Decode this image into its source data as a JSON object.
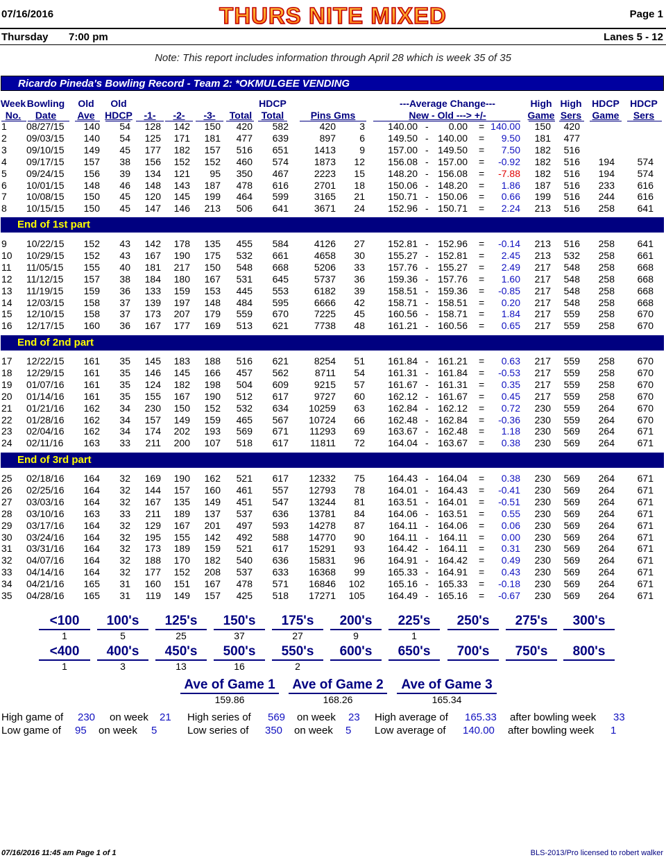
{
  "header": {
    "date": "07/16/2016",
    "league_name": "THURS NITE MIXED",
    "page": "Page 1",
    "day": "Thursday",
    "time": "7:00 pm",
    "lanes": "Lanes 5 - 12",
    "note": "Note: This report includes information through April 28   which is week 35 of 35"
  },
  "record_title": "Ricardo Pineda's Bowling Record  - Team 2: *OKMULGEE VENDING",
  "columns": {
    "week": [
      "Week",
      "No."
    ],
    "bowling_date": [
      "Bowling",
      "Date"
    ],
    "old_ave": [
      "Old",
      "Ave"
    ],
    "old_hdcp": [
      "Old",
      "HDCP"
    ],
    "g1": "-1-",
    "g2": "-2-",
    "g3": "-3-",
    "total": "Total",
    "hdcp_total": [
      "HDCP",
      "Total"
    ],
    "pins_gms": "Pins  Gms",
    "avg_change": [
      "---Average Change---",
      "New - Old ---> +/-"
    ],
    "high_game": [
      "High",
      "Game"
    ],
    "high_sers": [
      "High",
      "Sers"
    ],
    "hdcp_game": [
      "HDCP",
      "Game"
    ],
    "hdcp_sers": [
      "HDCP",
      "Sers"
    ]
  },
  "parts": [
    "End of 1st part",
    "End of 2nd part",
    "End of 3rd part"
  ],
  "rows": [
    [
      "1",
      "08/27/15",
      "140",
      "54",
      "128",
      "142",
      "150",
      "420",
      "582",
      "420",
      "3",
      "140.00",
      "0.00",
      "140.00",
      "150",
      "420",
      "",
      ""
    ],
    [
      "2",
      "09/03/15",
      "140",
      "54",
      "125",
      "171",
      "181",
      "477",
      "639",
      "897",
      "6",
      "149.50",
      "140.00",
      "9.50",
      "181",
      "477",
      "",
      ""
    ],
    [
      "3",
      "09/10/15",
      "149",
      "45",
      "177",
      "182",
      "157",
      "516",
      "651",
      "1413",
      "9",
      "157.00",
      "149.50",
      "7.50",
      "182",
      "516",
      "",
      ""
    ],
    [
      "4",
      "09/17/15",
      "157",
      "38",
      "156",
      "152",
      "152",
      "460",
      "574",
      "1873",
      "12",
      "156.08",
      "157.00",
      "-0.92",
      "182",
      "516",
      "194",
      "574"
    ],
    [
      "5",
      "09/24/15",
      "156",
      "39",
      "134",
      "121",
      "95",
      "350",
      "467",
      "2223",
      "15",
      "148.20",
      "156.08",
      "-7.88",
      "182",
      "516",
      "194",
      "574"
    ],
    [
      "6",
      "10/01/15",
      "148",
      "46",
      "148",
      "143",
      "187",
      "478",
      "616",
      "2701",
      "18",
      "150.06",
      "148.20",
      "1.86",
      "187",
      "516",
      "233",
      "616"
    ],
    [
      "7",
      "10/08/15",
      "150",
      "45",
      "120",
      "145",
      "199",
      "464",
      "599",
      "3165",
      "21",
      "150.71",
      "150.06",
      "0.66",
      "199",
      "516",
      "244",
      "616"
    ],
    [
      "8",
      "10/15/15",
      "150",
      "45",
      "147",
      "146",
      "213",
      "506",
      "641",
      "3671",
      "24",
      "152.96",
      "150.71",
      "2.24",
      "213",
      "516",
      "258",
      "641"
    ],
    [
      "9",
      "10/22/15",
      "152",
      "43",
      "142",
      "178",
      "135",
      "455",
      "584",
      "4126",
      "27",
      "152.81",
      "152.96",
      "-0.14",
      "213",
      "516",
      "258",
      "641"
    ],
    [
      "10",
      "10/29/15",
      "152",
      "43",
      "167",
      "190",
      "175",
      "532",
      "661",
      "4658",
      "30",
      "155.27",
      "152.81",
      "2.45",
      "213",
      "532",
      "258",
      "661"
    ],
    [
      "11",
      "11/05/15",
      "155",
      "40",
      "181",
      "217",
      "150",
      "548",
      "668",
      "5206",
      "33",
      "157.76",
      "155.27",
      "2.49",
      "217",
      "548",
      "258",
      "668"
    ],
    [
      "12",
      "11/12/15",
      "157",
      "38",
      "184",
      "180",
      "167",
      "531",
      "645",
      "5737",
      "36",
      "159.36",
      "157.76",
      "1.60",
      "217",
      "548",
      "258",
      "668"
    ],
    [
      "13",
      "11/19/15",
      "159",
      "36",
      "133",
      "159",
      "153",
      "445",
      "553",
      "6182",
      "39",
      "158.51",
      "159.36",
      "-0.85",
      "217",
      "548",
      "258",
      "668"
    ],
    [
      "14",
      "12/03/15",
      "158",
      "37",
      "139",
      "197",
      "148",
      "484",
      "595",
      "6666",
      "42",
      "158.71",
      "158.51",
      "0.20",
      "217",
      "548",
      "258",
      "668"
    ],
    [
      "15",
      "12/10/15",
      "158",
      "37",
      "173",
      "207",
      "179",
      "559",
      "670",
      "7225",
      "45",
      "160.56",
      "158.71",
      "1.84",
      "217",
      "559",
      "258",
      "670"
    ],
    [
      "16",
      "12/17/15",
      "160",
      "36",
      "167",
      "177",
      "169",
      "513",
      "621",
      "7738",
      "48",
      "161.21",
      "160.56",
      "0.65",
      "217",
      "559",
      "258",
      "670"
    ],
    [
      "17",
      "12/22/15",
      "161",
      "35",
      "145",
      "183",
      "188",
      "516",
      "621",
      "8254",
      "51",
      "161.84",
      "161.21",
      "0.63",
      "217",
      "559",
      "258",
      "670"
    ],
    [
      "18",
      "12/29/15",
      "161",
      "35",
      "146",
      "145",
      "166",
      "457",
      "562",
      "8711",
      "54",
      "161.31",
      "161.84",
      "-0.53",
      "217",
      "559",
      "258",
      "670"
    ],
    [
      "19",
      "01/07/16",
      "161",
      "35",
      "124",
      "182",
      "198",
      "504",
      "609",
      "9215",
      "57",
      "161.67",
      "161.31",
      "0.35",
      "217",
      "559",
      "258",
      "670"
    ],
    [
      "20",
      "01/14/16",
      "161",
      "35",
      "155",
      "167",
      "190",
      "512",
      "617",
      "9727",
      "60",
      "162.12",
      "161.67",
      "0.45",
      "217",
      "559",
      "258",
      "670"
    ],
    [
      "21",
      "01/21/16",
      "162",
      "34",
      "230",
      "150",
      "152",
      "532",
      "634",
      "10259",
      "63",
      "162.84",
      "162.12",
      "0.72",
      "230",
      "559",
      "264",
      "670"
    ],
    [
      "22",
      "01/28/16",
      "162",
      "34",
      "157",
      "149",
      "159",
      "465",
      "567",
      "10724",
      "66",
      "162.48",
      "162.84",
      "-0.36",
      "230",
      "559",
      "264",
      "670"
    ],
    [
      "23",
      "02/04/16",
      "162",
      "34",
      "174",
      "202",
      "193",
      "569",
      "671",
      "11293",
      "69",
      "163.67",
      "162.48",
      "1.18",
      "230",
      "569",
      "264",
      "671"
    ],
    [
      "24",
      "02/11/16",
      "163",
      "33",
      "211",
      "200",
      "107",
      "518",
      "617",
      "11811",
      "72",
      "164.04",
      "163.67",
      "0.38",
      "230",
      "569",
      "264",
      "671"
    ],
    [
      "25",
      "02/18/16",
      "164",
      "32",
      "169",
      "190",
      "162",
      "521",
      "617",
      "12332",
      "75",
      "164.43",
      "164.04",
      "0.38",
      "230",
      "569",
      "264",
      "671"
    ],
    [
      "26",
      "02/25/16",
      "164",
      "32",
      "144",
      "157",
      "160",
      "461",
      "557",
      "12793",
      "78",
      "164.01",
      "164.43",
      "-0.41",
      "230",
      "569",
      "264",
      "671"
    ],
    [
      "27",
      "03/03/16",
      "164",
      "32",
      "167",
      "135",
      "149",
      "451",
      "547",
      "13244",
      "81",
      "163.51",
      "164.01",
      "-0.51",
      "230",
      "569",
      "264",
      "671"
    ],
    [
      "28",
      "03/10/16",
      "163",
      "33",
      "211",
      "189",
      "137",
      "537",
      "636",
      "13781",
      "84",
      "164.06",
      "163.51",
      "0.55",
      "230",
      "569",
      "264",
      "671"
    ],
    [
      "29",
      "03/17/16",
      "164",
      "32",
      "129",
      "167",
      "201",
      "497",
      "593",
      "14278",
      "87",
      "164.11",
      "164.06",
      "0.06",
      "230",
      "569",
      "264",
      "671"
    ],
    [
      "30",
      "03/24/16",
      "164",
      "32",
      "195",
      "155",
      "142",
      "492",
      "588",
      "14770",
      "90",
      "164.11",
      "164.11",
      "0.00",
      "230",
      "569",
      "264",
      "671"
    ],
    [
      "31",
      "03/31/16",
      "164",
      "32",
      "173",
      "189",
      "159",
      "521",
      "617",
      "15291",
      "93",
      "164.42",
      "164.11",
      "0.31",
      "230",
      "569",
      "264",
      "671"
    ],
    [
      "32",
      "04/07/16",
      "164",
      "32",
      "188",
      "170",
      "182",
      "540",
      "636",
      "15831",
      "96",
      "164.91",
      "164.42",
      "0.49",
      "230",
      "569",
      "264",
      "671"
    ],
    [
      "33",
      "04/14/16",
      "164",
      "32",
      "177",
      "152",
      "208",
      "537",
      "633",
      "16368",
      "99",
      "165.33",
      "164.91",
      "0.43",
      "230",
      "569",
      "264",
      "671"
    ],
    [
      "34",
      "04/21/16",
      "165",
      "31",
      "160",
      "151",
      "167",
      "478",
      "571",
      "16846",
      "102",
      "165.16",
      "165.33",
      "-0.18",
      "230",
      "569",
      "264",
      "671"
    ],
    [
      "35",
      "04/28/16",
      "165",
      "31",
      "119",
      "149",
      "157",
      "425",
      "518",
      "17271",
      "105",
      "164.49",
      "165.16",
      "-0.67",
      "230",
      "569",
      "264",
      "671"
    ]
  ],
  "game_distribution": [
    {
      "label": "<100",
      "count": "1"
    },
    {
      "label": "100's",
      "count": "5"
    },
    {
      "label": "125's",
      "count": "25"
    },
    {
      "label": "150's",
      "count": "37"
    },
    {
      "label": "175's",
      "count": "27"
    },
    {
      "label": "200's",
      "count": "9"
    },
    {
      "label": "225's",
      "count": "1"
    },
    {
      "label": "250's",
      "count": ""
    },
    {
      "label": "275's",
      "count": ""
    },
    {
      "label": "300's",
      "count": ""
    }
  ],
  "series_distribution": [
    {
      "label": "<400",
      "count": "1"
    },
    {
      "label": "400's",
      "count": "3"
    },
    {
      "label": "450's",
      "count": "13"
    },
    {
      "label": "500's",
      "count": "16"
    },
    {
      "label": "550's",
      "count": "2"
    },
    {
      "label": "600's",
      "count": ""
    },
    {
      "label": "650's",
      "count": ""
    },
    {
      "label": "700's",
      "count": ""
    },
    {
      "label": "750's",
      "count": ""
    },
    {
      "label": "800's",
      "count": ""
    }
  ],
  "game_averages": [
    {
      "label": "Ave of Game 1",
      "value": "159.86"
    },
    {
      "label": "Ave of Game 2",
      "value": "168.26"
    },
    {
      "label": "Ave of Game 3",
      "value": "165.34"
    }
  ],
  "summary": {
    "high_game_label": "High game of",
    "high_game": "230",
    "high_game_week_label": "on week",
    "high_game_week": "21",
    "low_game_label": "Low game of",
    "low_game": "95",
    "low_game_week_label": "on week",
    "low_game_week": "5",
    "high_series_label": "High series of",
    "high_series": "569",
    "high_series_week_label": "on week",
    "high_series_week": "23",
    "low_series_label": "Low series of",
    "low_series": "350",
    "low_series_week_label": "on week",
    "low_series_week": "5",
    "high_avg_label": "High average of",
    "high_avg": "165.33",
    "high_avg_after_label": "after bowling week",
    "high_avg_week": "33",
    "low_avg_label": "Low average of",
    "low_avg": "140.00",
    "low_avg_after_label": "after bowling week",
    "low_avg_week": "1"
  },
  "footer": {
    "left": "07/16/2016  11:45 am  Page 1 of 1",
    "right": "BLS-2013/Pro licensed to robert walker"
  },
  "colors": {
    "title_bar": "#0000a0",
    "part_bar": "#000080",
    "part_text": "#ffff00",
    "header_text": "#000080",
    "positive_change": "#1010c0",
    "big_negative_change": "#e00000",
    "logo_fill": "#ff9020",
    "logo_outline": "#c00000"
  }
}
